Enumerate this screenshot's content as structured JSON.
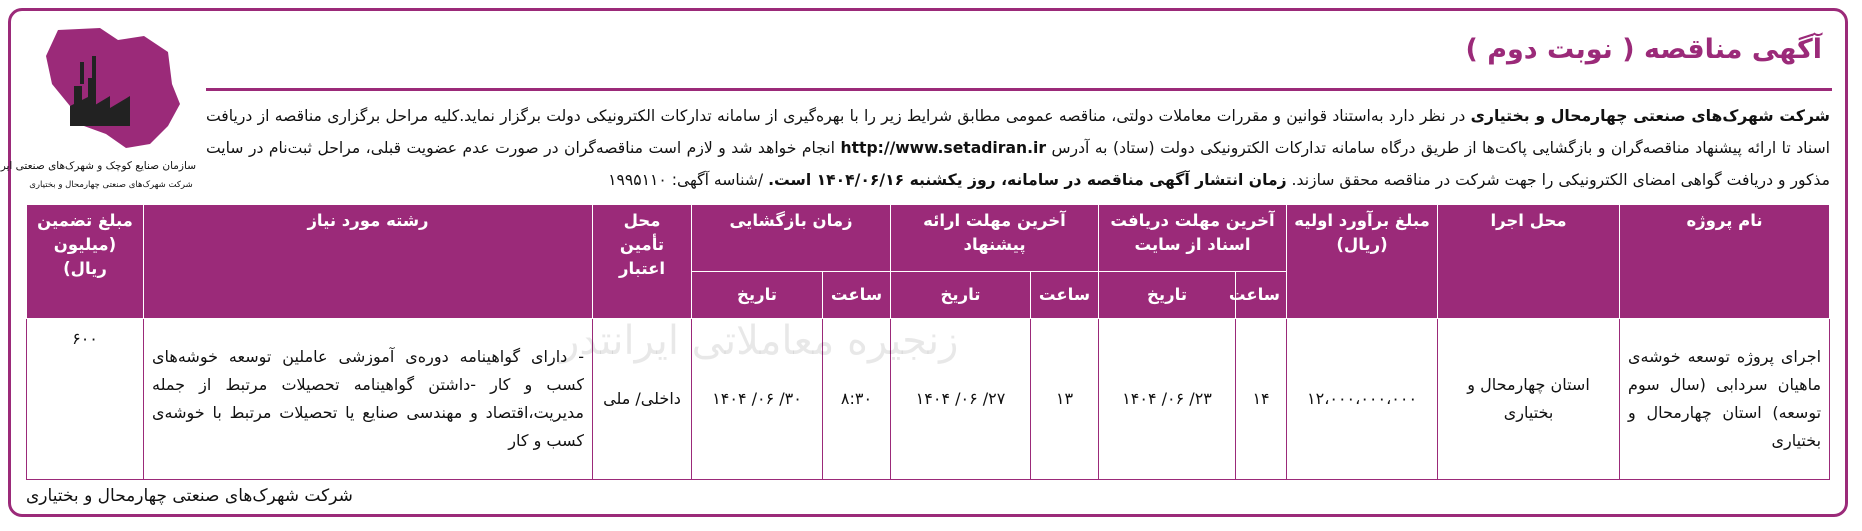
{
  "header": {
    "title": "آگهی مناقصه ( نوبت دوم )"
  },
  "logo": {
    "org": "سازمان صنایع کوچک و شهرک‌های صنعتی ایران",
    "company": "شرکت شهرک‌های صنعتی چهارمحال و بختیاری"
  },
  "intro": {
    "company": "شرکت شهرک‌های صنعتی چهارمحال و بختیاری",
    "text1": " در نظر دارد به‌استناد قوانین و مقررات معاملات دولتی، مناقصه عمومی مطابق شرایط زیر را با بهره‌گیری از سامانه تدارکات الکترونیکی دولت برگزار نماید.کلیه مراحل برگزاری مناقصه از دریافت اسناد تا ارائه پیشنهاد مناقصه‌گران و بازگشایی پاکت‌ها از طریق درگاه سامانه تدارکات الکترونیکی دولت (ستاد) به آدرس ",
    "url": "http://www.setadiran.ir",
    "text2": " انجام خواهد شد و لازم است مناقصه‌گران در صورت عدم عضویت قبلی، مراحل ثبت‌نام در سایت مذکور و دریافت گواهی امضای الکترونیکی را جهت شرکت در مناقصه محقق سازند. ",
    "publish": "زمان انتشار آگهی مناقصه در سامانه، روز یکشنبه ۱۴۰۴/۰۶/۱۶ است.",
    "text3": " /شناسه آگهی: ۱۹۹۵۱۱۰"
  },
  "table": {
    "headers": [
      "نام پروژه",
      "محل اجرا",
      "مبلغ برآورد اولیه (ریال)",
      "آخرین مهلت دریافت اسناد از سایت",
      "آخرین مهلت ارائه پیشنهاد",
      "زمان بازگشایی",
      "محل تأمین اعتبار",
      "رشته مورد نیاز",
      "مبلغ تضمین (میلیون ریال)"
    ],
    "subheaders": [
      "ساعت",
      "تاریخ",
      "ساعت",
      "تاریخ",
      "ساعت",
      "تاریخ"
    ],
    "rows": [
      [
        "اجرای پروژه توسعه خوشه‌ی ماهیان سردابی (سال سوم توسعه) استان چهارمحال و بختیاری",
        "استان چهارمحال و بختیاری",
        "۱۲،۰۰۰،۰۰۰،۰۰۰",
        "۱۴",
        "۱۴۰۴ /۰۶ /۲۳",
        "۱۳",
        "۱۴۰۴ /۰۶ /۲۷",
        "۸:۳۰",
        "۱۴۰۴ /۰۶ /۳۰",
        "داخلی/ ملی",
        "- دارای گواهینامه دوره‌ی آموزشی عاملین توسعه خوشه‌های کسب و کار -داشتن گواهینامه تحصیلات مرتبط از جمله مدیریت،اقتصاد و مهندسی صنایع یا تحصیلات مرتبط با خوشه‌ی کسب و کار",
        "۶۰۰"
      ]
    ]
  },
  "watermark": "زنجیره معاملاتی ایرانتدر",
  "footer": "شرکت شهرک‌های صنعتی چهارمحال و بختیاری"
}
